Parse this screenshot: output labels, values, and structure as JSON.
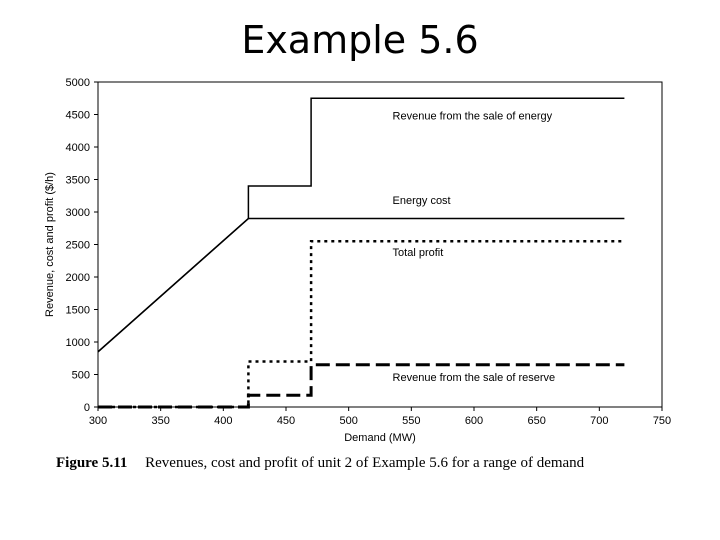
{
  "slide": {
    "title": "Example 5.6"
  },
  "caption": {
    "figure_label": "Figure 5.11",
    "text": "Revenues, cost and profit of unit 2 of Example 5.6 for a range of demand"
  },
  "chart_data": {
    "type": "line",
    "xlabel": "Demand (MW)",
    "ylabel": "Revenue, cost and profit ($/h)",
    "xlim": [
      300,
      750
    ],
    "ylim": [
      0,
      5000
    ],
    "xticks": [
      300,
      350,
      400,
      450,
      500,
      550,
      600,
      650,
      700,
      750
    ],
    "yticks": [
      0,
      500,
      1000,
      1500,
      2000,
      2500,
      3000,
      3500,
      4000,
      4500,
      5000
    ],
    "grid": false,
    "series": [
      {
        "name": "Revenue from the sale of energy",
        "style": "solid",
        "x": [
          300,
          420,
          420,
          470,
          470,
          720
        ],
        "y": [
          850,
          2900,
          3400,
          3400,
          4750,
          4750
        ]
      },
      {
        "name": "Energy cost",
        "style": "solid",
        "x": [
          300,
          420,
          720
        ],
        "y": [
          850,
          2900,
          2900
        ]
      },
      {
        "name": "Total profit",
        "style": "dotted",
        "x": [
          300,
          420,
          420,
          470,
          470,
          720
        ],
        "y": [
          0,
          0,
          700,
          700,
          2550,
          2550
        ]
      },
      {
        "name": "Revenue from the sale of reserve",
        "style": "dashed",
        "x": [
          300,
          420,
          420,
          470,
          470,
          720
        ],
        "y": [
          0,
          0,
          180,
          180,
          650,
          650
        ]
      }
    ],
    "annotations": [
      {
        "text": "Revenue from the sale of energy",
        "x": 535,
        "y": 4420
      },
      {
        "text": "Energy cost",
        "x": 535,
        "y": 3120
      },
      {
        "text": "Total profit",
        "x": 535,
        "y": 2320
      },
      {
        "text": "Revenue from the sale of reserve",
        "x": 535,
        "y": 400
      }
    ]
  }
}
